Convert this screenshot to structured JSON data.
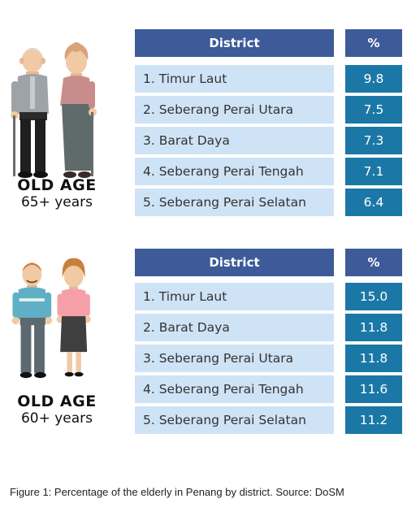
{
  "caption": "Figure 1: Percentage of the elderly in Penang by district. Source: DoSM",
  "chart_data": [
    {
      "type": "table",
      "group_title": "OLD AGE",
      "group_subtitle": "65+ years",
      "columns": [
        "District",
        "%"
      ],
      "rows": [
        {
          "district": "1. Timur Laut",
          "value": "9.8"
        },
        {
          "district": "2. Seberang Perai Utara",
          "value": "7.5"
        },
        {
          "district": "3. Barat Daya",
          "value": "7.3"
        },
        {
          "district": "4. Seberang Perai Tengah",
          "value": "7.1"
        },
        {
          "district": "5. Seberang Perai Selatan",
          "value": "6.4"
        }
      ]
    },
    {
      "type": "table",
      "group_title": "OLD AGE",
      "group_subtitle": "60+ years",
      "columns": [
        "District",
        "%"
      ],
      "rows": [
        {
          "district": "1. Timur Laut",
          "value": "15.0"
        },
        {
          "district": "2. Barat Daya",
          "value": "11.8"
        },
        {
          "district": "3. Seberang Perai Utara",
          "value": "11.8"
        },
        {
          "district": "4. Seberang Perai Tengah",
          "value": "11.6"
        },
        {
          "district": "5. Seberang Perai Selatan",
          "value": "11.2"
        }
      ]
    }
  ],
  "colors": {
    "header_bg": "#3d5a99",
    "district_bg": "#cfe3f6",
    "value_bg": "#1b78a6"
  }
}
